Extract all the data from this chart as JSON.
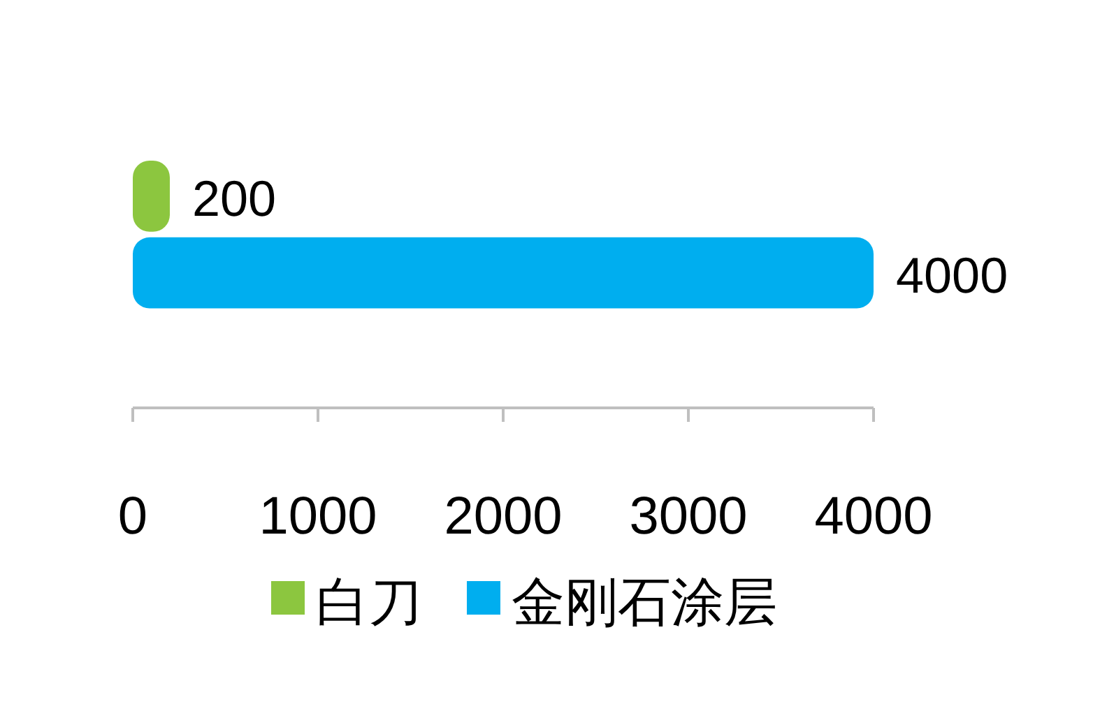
{
  "chart_data": {
    "type": "bar",
    "orientation": "horizontal",
    "categories": [
      null
    ],
    "series": [
      {
        "name": "白刀",
        "color": "#8cc63f",
        "values": [
          200
        ]
      },
      {
        "name": "金刚石涂层",
        "color": "#00aeef",
        "values": [
          4000
        ]
      }
    ],
    "xlim": [
      0,
      4000
    ],
    "xticks": [
      0,
      1000,
      2000,
      3000,
      4000
    ],
    "data_labels": true,
    "legend": "bottom"
  }
}
